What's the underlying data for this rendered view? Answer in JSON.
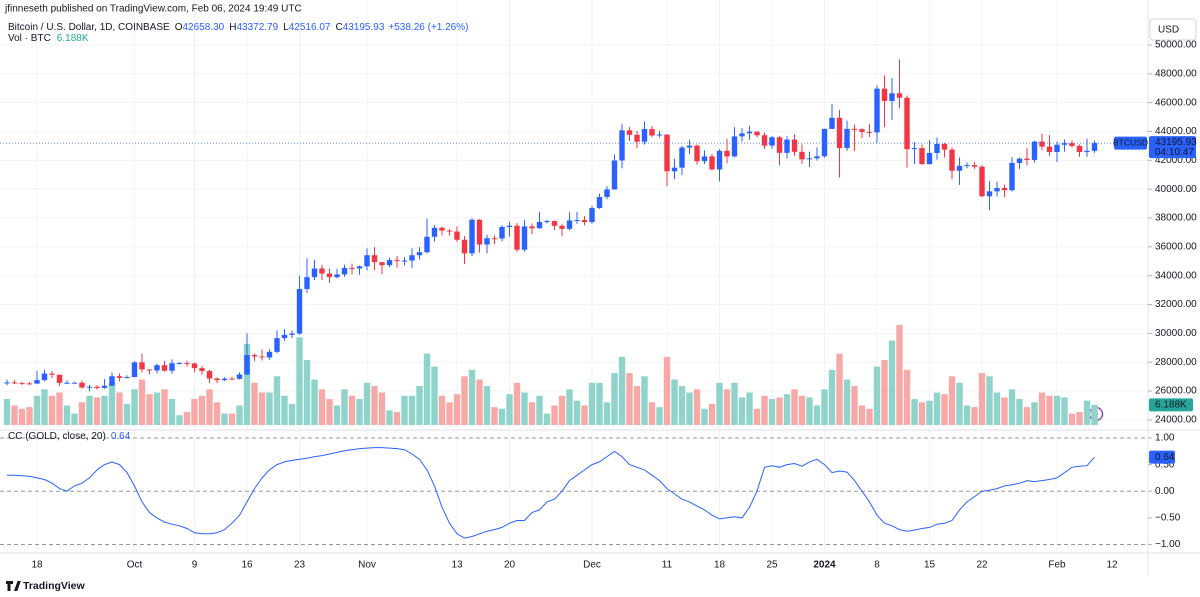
{
  "header": {
    "publisher": "jfinneseth published on TradingView.com, Feb 06, 2024 19:49 UTC",
    "symbol": "Bitcoin / U.S. Dollar, 1D, COINBASE",
    "ohlc": [
      {
        "key": "O",
        "value": "42658.30"
      },
      {
        "key": "H",
        "value": "43372.79"
      },
      {
        "key": "L",
        "value": "42516.07"
      },
      {
        "key": "C",
        "value": "43195.93"
      }
    ],
    "change": "+538.26 (+1.26%)",
    "volume_title": "Vol · BTC",
    "volume_value": "6.188K"
  },
  "chart_data": [
    {
      "type": "candlestick",
      "currency": "USD",
      "symbol_label": "BTCUSD",
      "countdown": "04:10:47",
      "volume_last_label": "6.188K",
      "xlabel_after": "12",
      "up_color": "#2962ff",
      "down_color": "#f23645",
      "volume_up_color": "#8fd3ca",
      "volume_down_color": "#f7a9a8",
      "grid": true,
      "ylim": [
        23300,
        50830
      ],
      "yticks": [
        {
          "value": 24000,
          "label": "24000.00"
        },
        {
          "value": 26000,
          "label": "26000.00"
        },
        {
          "value": 28000,
          "label": "28000.00"
        },
        {
          "value": 30000,
          "label": "30000.00"
        },
        {
          "value": 32000,
          "label": "32000.00"
        },
        {
          "value": 34000,
          "label": "34000.00"
        },
        {
          "value": 36000,
          "label": "36000.00"
        },
        {
          "value": 38000,
          "label": "38000.00"
        },
        {
          "value": 40000,
          "label": "40000.00"
        },
        {
          "value": 42000,
          "label": "42000.00"
        },
        {
          "value": 44000,
          "label": "44000.00"
        },
        {
          "value": 46000,
          "label": "46000.00"
        },
        {
          "value": 48000,
          "label": "48000.00"
        },
        {
          "value": 50000,
          "label": "50000.00"
        }
      ],
      "categories": [
        null,
        null,
        null,
        null,
        "18",
        null,
        null,
        null,
        null,
        null,
        null,
        null,
        null,
        null,
        null,
        null,
        null,
        "Oct",
        null,
        null,
        null,
        null,
        null,
        null,
        null,
        "9",
        null,
        null,
        null,
        null,
        null,
        null,
        "16",
        null,
        null,
        null,
        null,
        null,
        null,
        "23",
        null,
        null,
        null,
        null,
        null,
        null,
        null,
        null,
        "Nov",
        null,
        null,
        null,
        null,
        null,
        null,
        null,
        null,
        null,
        null,
        null,
        "13",
        null,
        null,
        null,
        null,
        null,
        null,
        "20",
        null,
        null,
        null,
        null,
        null,
        null,
        null,
        null,
        null,
        null,
        "Dec",
        null,
        null,
        null,
        null,
        null,
        null,
        null,
        null,
        null,
        "11",
        null,
        null,
        null,
        null,
        null,
        null,
        "18",
        null,
        null,
        null,
        null,
        null,
        null,
        "25",
        null,
        null,
        null,
        null,
        null,
        null,
        "2024",
        null,
        null,
        null,
        null,
        null,
        null,
        "8",
        null,
        null,
        null,
        null,
        null,
        null,
        "15",
        null,
        null,
        null,
        null,
        null,
        null,
        "22",
        null,
        null,
        null,
        null,
        null,
        null,
        null,
        null,
        null,
        "Feb",
        null,
        null,
        null,
        null,
        null
      ],
      "open": [
        26530,
        26600,
        26570,
        26530,
        26520,
        26760,
        27210,
        27130,
        26570,
        26580,
        26580,
        26250,
        26300,
        26220,
        26370,
        27030,
        26910,
        26970,
        27990,
        27500,
        27430,
        27790,
        27410,
        27930,
        27950,
        27920,
        27590,
        27390,
        26870,
        26760,
        26860,
        26850,
        27150,
        28500,
        28400,
        28330,
        28720,
        29670,
        29900,
        29990,
        33080,
        33900,
        34500,
        34150,
        33900,
        34090,
        34540,
        34500,
        34650,
        35420,
        34940,
        34730,
        35080,
        35040,
        35050,
        35420,
        35630,
        36700,
        37320,
        37130,
        37060,
        36490,
        35550,
        37880,
        36160,
        36600,
        36580,
        37380,
        37470,
        35800,
        37420,
        37290,
        37720,
        37790,
        37460,
        37250,
        37830,
        37860,
        37720,
        38690,
        39460,
        39980,
        41990,
        44080,
        43770,
        43290,
        44170,
        43720,
        43790,
        41240,
        41490,
        42890,
        43020,
        41940,
        42270,
        41370,
        42660,
        42270,
        43660,
        43870,
        43990,
        43740,
        43020,
        43600,
        42520,
        43440,
        42590,
        42070,
        42140,
        42280,
        44180,
        44950,
        42850,
        44180,
        44160,
        43970,
        43940,
        46970,
        46120,
        46650,
        46340,
        42780,
        42850,
        41730,
        42510,
        43140,
        42740,
        41280,
        41620,
        41670,
        41560,
        39510,
        39850,
        40080,
        39930,
        41820,
        42120,
        42030,
        43300,
        42950,
        42580,
        43080,
        43190,
        43000,
        42580,
        42658.3
      ],
      "high": [
        26800,
        26780,
        26620,
        26630,
        27400,
        27480,
        27380,
        27160,
        26740,
        26640,
        26720,
        26420,
        26400,
        26830,
        27300,
        27230,
        27100,
        28070,
        28600,
        27500,
        27900,
        28100,
        28200,
        28000,
        28100,
        27970,
        27720,
        27470,
        26950,
        26970,
        26990,
        27300,
        30000,
        28610,
        28900,
        28900,
        30200,
        30300,
        30200,
        34000,
        35200,
        35100,
        34750,
        34500,
        34480,
        34770,
        34850,
        34720,
        35900,
        35980,
        34940,
        35250,
        35370,
        35280,
        35900,
        35980,
        37950,
        37500,
        37400,
        37220,
        37420,
        36750,
        37980,
        37930,
        36850,
        36800,
        37510,
        37750,
        37650,
        37860,
        37630,
        38420,
        37880,
        37830,
        37600,
        38400,
        38420,
        38150,
        38850,
        39700,
        40200,
        42400,
        44500,
        44300,
        44050,
        44700,
        44370,
        44040,
        43800,
        42100,
        43000,
        43420,
        43100,
        42700,
        42440,
        42770,
        43500,
        44300,
        44230,
        44400,
        44010,
        43930,
        43700,
        43700,
        43680,
        43800,
        43100,
        42600,
        42900,
        44200,
        45900,
        45500,
        44750,
        44480,
        44230,
        44500,
        47200,
        47900,
        47700,
        49000,
        46500,
        43250,
        43100,
        43400,
        43580,
        43200,
        42900,
        42200,
        41850,
        41880,
        41680,
        40560,
        40520,
        40300,
        42230,
        42200,
        42850,
        43350,
        43850,
        43750,
        43300,
        43450,
        43380,
        43100,
        43500,
        43372.79
      ],
      "low": [
        26400,
        26480,
        26420,
        26450,
        26480,
        26670,
        26900,
        26370,
        26500,
        26520,
        26150,
        25990,
        26100,
        26150,
        26350,
        26670,
        26890,
        26960,
        27300,
        27170,
        27230,
        27350,
        27200,
        27860,
        27700,
        27300,
        27140,
        26560,
        26560,
        26700,
        26810,
        26800,
        27110,
        28080,
        28120,
        28170,
        28620,
        29480,
        29670,
        29900,
        32800,
        33700,
        33700,
        33500,
        33820,
        33920,
        34090,
        34070,
        34360,
        34380,
        34100,
        34580,
        34560,
        34720,
        34540,
        35120,
        35550,
        36360,
        36800,
        36780,
        36340,
        34800,
        35370,
        35600,
        35550,
        36200,
        36380,
        36720,
        35640,
        35670,
        36880,
        37250,
        37620,
        37160,
        36730,
        37150,
        37600,
        37500,
        37600,
        38640,
        39300,
        39970,
        41440,
        43350,
        42840,
        43100,
        43600,
        43580,
        40200,
        40700,
        40970,
        42430,
        41700,
        41750,
        41300,
        40540,
        41800,
        42200,
        43300,
        43430,
        43600,
        42790,
        42780,
        41650,
        42120,
        42300,
        41750,
        41530,
        41980,
        42190,
        44180,
        40800,
        42650,
        42650,
        43550,
        43610,
        43200,
        44300,
        44800,
        45600,
        41500,
        41750,
        41700,
        41730,
        42050,
        42200,
        40700,
        40300,
        41450,
        41420,
        39430,
        38550,
        39500,
        39450,
        39830,
        41400,
        41650,
        41830,
        42700,
        42300,
        41890,
        42600,
        42880,
        42240,
        42250,
        42516.07
      ],
      "close": [
        26600,
        26570,
        26530,
        26520,
        26760,
        27210,
        27130,
        26570,
        26580,
        26580,
        26250,
        26300,
        26220,
        26370,
        27030,
        26910,
        26970,
        27990,
        27500,
        27430,
        27790,
        27410,
        27930,
        27950,
        27920,
        27590,
        27390,
        26870,
        26760,
        26860,
        26850,
        27150,
        28500,
        28400,
        28330,
        28720,
        29670,
        29900,
        29990,
        33080,
        33900,
        34500,
        34150,
        33900,
        34090,
        34540,
        34500,
        34650,
        35420,
        34940,
        34730,
        35080,
        35040,
        35050,
        35420,
        35630,
        36700,
        37320,
        37130,
        37060,
        36490,
        35550,
        37880,
        36160,
        36600,
        36580,
        37380,
        37470,
        35800,
        37420,
        37290,
        37720,
        37790,
        37460,
        37250,
        37830,
        37860,
        37720,
        38690,
        39460,
        39980,
        41990,
        44080,
        43770,
        43290,
        44170,
        43720,
        43790,
        41240,
        41490,
        42890,
        43020,
        41940,
        42270,
        41370,
        42660,
        42270,
        43660,
        43870,
        43990,
        43740,
        43020,
        43600,
        42520,
        43440,
        42590,
        42070,
        42140,
        42280,
        44180,
        44950,
        42850,
        44180,
        44160,
        43970,
        43940,
        46970,
        46120,
        46650,
        46340,
        42780,
        42850,
        41730,
        42510,
        43140,
        42740,
        41280,
        41620,
        41670,
        41560,
        39510,
        39850,
        40080,
        39930,
        41820,
        42120,
        42030,
        43300,
        42950,
        42580,
        43080,
        43190,
        43000,
        42580,
        42657.67,
        43195.93
      ],
      "volume": [
        8000,
        6000,
        5000,
        5500,
        9000,
        11000,
        9000,
        10000,
        6000,
        3500,
        7000,
        9000,
        8500,
        9000,
        13000,
        10000,
        6500,
        11000,
        14000,
        9500,
        10000,
        11000,
        8000,
        3000,
        4000,
        8000,
        9000,
        11000,
        7000,
        3500,
        3500,
        6000,
        25000,
        13000,
        10000,
        10000,
        15000,
        9000,
        6500,
        27000,
        20000,
        14000,
        11000,
        8000,
        6000,
        11000,
        9000,
        8000,
        13000,
        12000,
        10000,
        4500,
        4000,
        9000,
        9000,
        12000,
        22000,
        18000,
        9000,
        7000,
        9500,
        15000,
        17000,
        14000,
        12000,
        5500,
        5000,
        9500,
        13000,
        10000,
        7000,
        9000,
        3500,
        6000,
        9000,
        11000,
        7500,
        6000,
        13000,
        13000,
        7000,
        16000,
        21000,
        16000,
        12000,
        15000,
        7000,
        5500,
        21000,
        14000,
        12000,
        10000,
        11000,
        5000,
        6500,
        13000,
        11000,
        13000,
        8500,
        10000,
        5000,
        9000,
        8000,
        8500,
        9500,
        11000,
        9000,
        8500,
        6000,
        11000,
        17000,
        22000,
        14000,
        12000,
        6000,
        5000,
        18000,
        20000,
        26000,
        30800,
        17000,
        8000,
        7000,
        7500,
        10000,
        9500,
        15000,
        13000,
        6000,
        5500,
        16000,
        15000,
        10000,
        8500,
        11000,
        8000,
        5500,
        7000,
        10000,
        9000,
        9000,
        8500,
        3500,
        4000,
        7500,
        6188
      ]
    },
    {
      "type": "line",
      "title": "CC (GOLD, close, 20)",
      "color": "#2962ff",
      "ylim": [
        -1.16,
        1.15
      ],
      "yticks": [
        {
          "value": 1,
          "label": "1.00"
        },
        {
          "value": 0.5,
          "label": "0.50"
        },
        {
          "value": 0,
          "label": "0.00"
        },
        {
          "value": -0.5,
          "label": "−0.50"
        },
        {
          "value": -1,
          "label": "−1.00"
        }
      ],
      "dashed_levels": [
        1,
        0,
        -1
      ],
      "values": [
        0.3,
        0.3,
        0.29,
        0.28,
        0.25,
        0.22,
        0.15,
        0.05,
        0.0,
        0.1,
        0.15,
        0.25,
        0.4,
        0.5,
        0.55,
        0.5,
        0.35,
        0.1,
        -0.2,
        -0.4,
        -0.5,
        -0.58,
        -0.62,
        -0.65,
        -0.7,
        -0.78,
        -0.8,
        -0.8,
        -0.78,
        -0.72,
        -0.6,
        -0.45,
        -0.2,
        0.05,
        0.25,
        0.4,
        0.5,
        0.55,
        0.58,
        0.6,
        0.62,
        0.65,
        0.67,
        0.7,
        0.73,
        0.76,
        0.78,
        0.8,
        0.81,
        0.82,
        0.82,
        0.81,
        0.8,
        0.78,
        0.7,
        0.6,
        0.4,
        0.1,
        -0.3,
        -0.6,
        -0.8,
        -0.88,
        -0.85,
        -0.8,
        -0.75,
        -0.72,
        -0.68,
        -0.6,
        -0.55,
        -0.55,
        -0.4,
        -0.35,
        -0.2,
        -0.15,
        0.0,
        0.2,
        0.3,
        0.4,
        0.5,
        0.55,
        0.65,
        0.75,
        0.65,
        0.5,
        0.45,
        0.4,
        0.3,
        0.2,
        0.05,
        -0.05,
        -0.15,
        -0.2,
        -0.28,
        -0.35,
        -0.45,
        -0.52,
        -0.5,
        -0.48,
        -0.5,
        -0.3,
        0.0,
        0.45,
        0.48,
        0.45,
        0.5,
        0.52,
        0.47,
        0.55,
        0.6,
        0.5,
        0.35,
        0.38,
        0.36,
        0.2,
        0.0,
        -0.2,
        -0.45,
        -0.6,
        -0.65,
        -0.72,
        -0.75,
        -0.73,
        -0.7,
        -0.68,
        -0.62,
        -0.6,
        -0.55,
        -0.35,
        -0.2,
        -0.1,
        0.0,
        0.02,
        0.05,
        0.1,
        0.12,
        0.15,
        0.2,
        0.18,
        0.2,
        0.22,
        0.25,
        0.35,
        0.45,
        0.47,
        0.48,
        0.64
      ]
    }
  ],
  "footer": {
    "brand": "TradingView"
  }
}
